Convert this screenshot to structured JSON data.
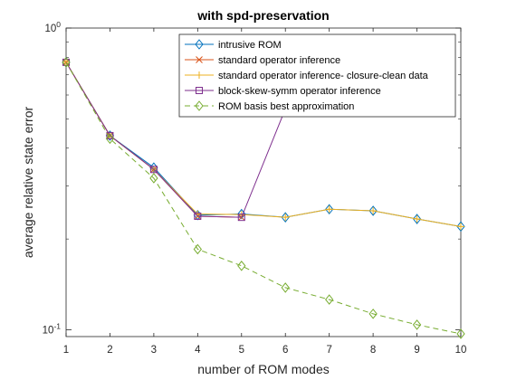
{
  "chart_data": {
    "type": "line",
    "title": "with spd-preservation",
    "xlabel": "number of ROM modes",
    "ylabel": "average relative state error",
    "x_ticks": [
      "1",
      "2",
      "3",
      "4",
      "5",
      "6",
      "7",
      "8",
      "9",
      "10"
    ],
    "y_ticks": [
      {
        "value": 0.1,
        "label": "10^-1"
      },
      {
        "value": 1,
        "label": "10^0"
      }
    ],
    "xlim": [
      1,
      10
    ],
    "ylim": [
      0.095,
      1
    ],
    "y_scale": "log",
    "grid": false,
    "legend_position": "top-right",
    "series": [
      {
        "name": "intrusive ROM",
        "color": "#0072BD",
        "marker": "diamond",
        "dash": "solid",
        "x": [
          1,
          2,
          3,
          4,
          5,
          6,
          7,
          8,
          9,
          10
        ],
        "y": [
          0.77,
          0.44,
          0.345,
          0.24,
          0.242,
          0.236,
          0.251,
          0.248,
          0.233,
          0.22
        ]
      },
      {
        "name": "standard operator inference",
        "color": "#D95319",
        "marker": "x",
        "dash": "solid",
        "x": [
          1,
          2,
          3,
          4,
          5
        ],
        "y": [
          0.77,
          0.44,
          0.34,
          0.238,
          0.236
        ]
      },
      {
        "name": "standard operator inference- closure-clean data",
        "color": "#EDB120",
        "marker": "plus",
        "dash": "solid",
        "x": [
          1,
          2,
          3,
          4,
          5,
          6,
          7,
          8,
          9,
          10
        ],
        "y": [
          0.77,
          0.44,
          0.34,
          0.242,
          0.241,
          0.236,
          0.251,
          0.248,
          0.233,
          0.22
        ]
      },
      {
        "name": "block-skew-symm operator inference",
        "color": "#7E2F8E",
        "marker": "square",
        "dash": "solid",
        "x": [
          1,
          2,
          3,
          4,
          5,
          6
        ],
        "y": [
          0.77,
          0.44,
          0.34,
          0.238,
          0.236,
          0.54
        ]
      },
      {
        "name": "ROM basis best approximation",
        "color": "#77AC30",
        "marker": "diamond",
        "dash": "dashed",
        "x": [
          1,
          2,
          3,
          4,
          5,
          6,
          7,
          8,
          9,
          10
        ],
        "y": [
          0.77,
          0.43,
          0.318,
          0.185,
          0.163,
          0.138,
          0.126,
          0.113,
          0.104,
          0.097
        ]
      }
    ]
  }
}
